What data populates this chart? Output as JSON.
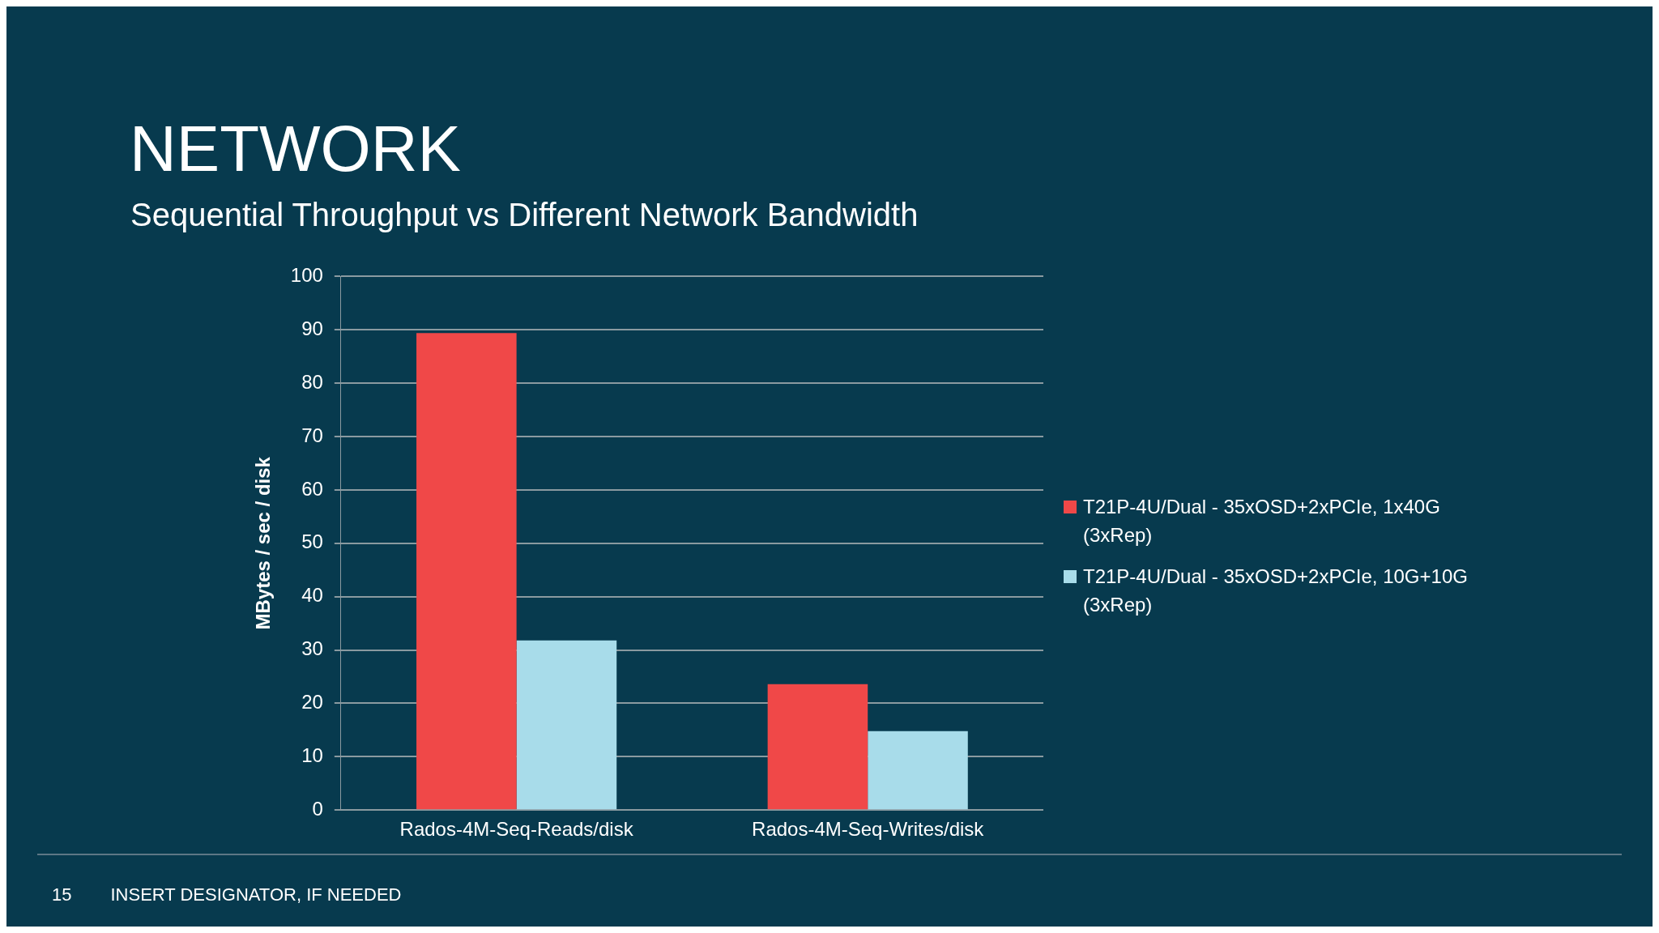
{
  "chart_data": {
    "type": "bar",
    "title": "NETWORK",
    "subtitle": "Sequential Throughput vs Different Network Bandwidth",
    "ylabel": "MBytes / sec / disk",
    "categories": [
      "Rados-4M-Seq-Reads/disk",
      "Rados-4M-Seq-Writes/disk"
    ],
    "series": [
      {
        "name": "T21P-4U/Dual - 35xOSD+2xPCIe, 1x40G (3xRep)",
        "color": "#f04848",
        "values": [
          89.4,
          23.6
        ]
      },
      {
        "name": "T21P-4U/Dual - 35xOSD+2xPCIe, 10G+10G (3xRep)",
        "color": "#a8dcea",
        "values": [
          31.8,
          14.8
        ]
      }
    ],
    "ylim": [
      0,
      100
    ],
    "yticks": [
      0,
      10,
      20,
      30,
      40,
      50,
      60,
      70,
      80,
      90,
      100
    ],
    "grid": "y",
    "legend": "right",
    "annotations": [
      "15",
      "INSERT DESIGNATOR, IF NEEDED"
    ]
  }
}
